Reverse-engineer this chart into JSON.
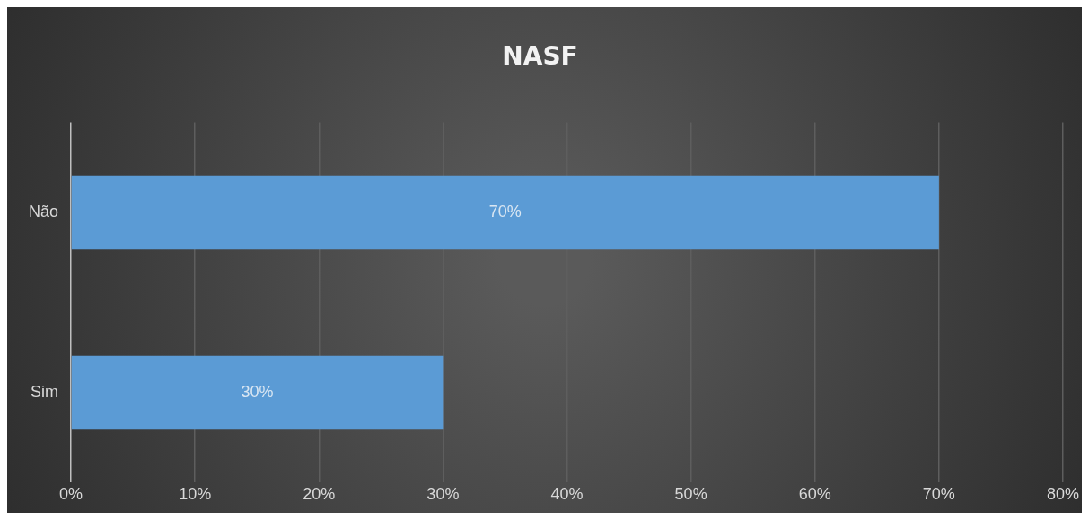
{
  "chart_data": {
    "type": "bar",
    "orientation": "horizontal",
    "title": "NASF",
    "categories": [
      "Não",
      "Sim"
    ],
    "values": [
      70,
      30
    ],
    "value_labels": [
      "70%",
      "30%"
    ],
    "color": "#5b9bd5",
    "xlim": [
      0,
      80
    ],
    "xticks": [
      {
        "value": 0,
        "label": "0%"
      },
      {
        "value": 10,
        "label": "10%"
      },
      {
        "value": 20,
        "label": "20%"
      },
      {
        "value": 30,
        "label": "30%"
      },
      {
        "value": 40,
        "label": "40%"
      },
      {
        "value": 50,
        "label": "50%"
      },
      {
        "value": 60,
        "label": "60%"
      },
      {
        "value": 70,
        "label": "70%"
      },
      {
        "value": 80,
        "label": "80%"
      }
    ],
    "grid": "x",
    "legend": false
  }
}
